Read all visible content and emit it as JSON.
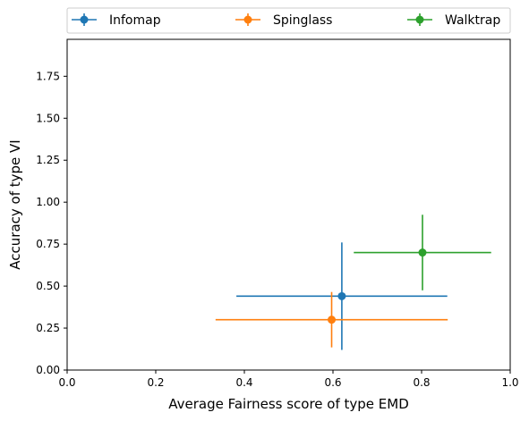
{
  "chart_data": {
    "type": "scatter",
    "xlabel": "Average Fairness score of type EMD",
    "ylabel": "Accuracy of type VI",
    "xlim": [
      0.0,
      1.0
    ],
    "ylim": [
      0.0,
      1.97
    ],
    "xticks": [
      "0.0",
      "0.2",
      "0.4",
      "0.6",
      "0.8",
      "1.0"
    ],
    "yticks": [
      "0.00",
      "0.25",
      "0.50",
      "0.75",
      "1.00",
      "1.25",
      "1.50",
      "1.75"
    ],
    "grid": false,
    "legend_position": "top, above plot",
    "series": [
      {
        "name": "Infomap",
        "color": "#1f77b4",
        "x": 0.62,
        "y": 0.44,
        "xerr": 0.238,
        "yerr": 0.32
      },
      {
        "name": "Spinglass",
        "color": "#ff7f0e",
        "x": 0.597,
        "y": 0.3,
        "xerr": 0.262,
        "yerr": 0.165
      },
      {
        "name": "Walktrap",
        "color": "#2ca02c",
        "x": 0.802,
        "y": 0.7,
        "xerr": 0.155,
        "yerr": 0.225
      }
    ]
  }
}
